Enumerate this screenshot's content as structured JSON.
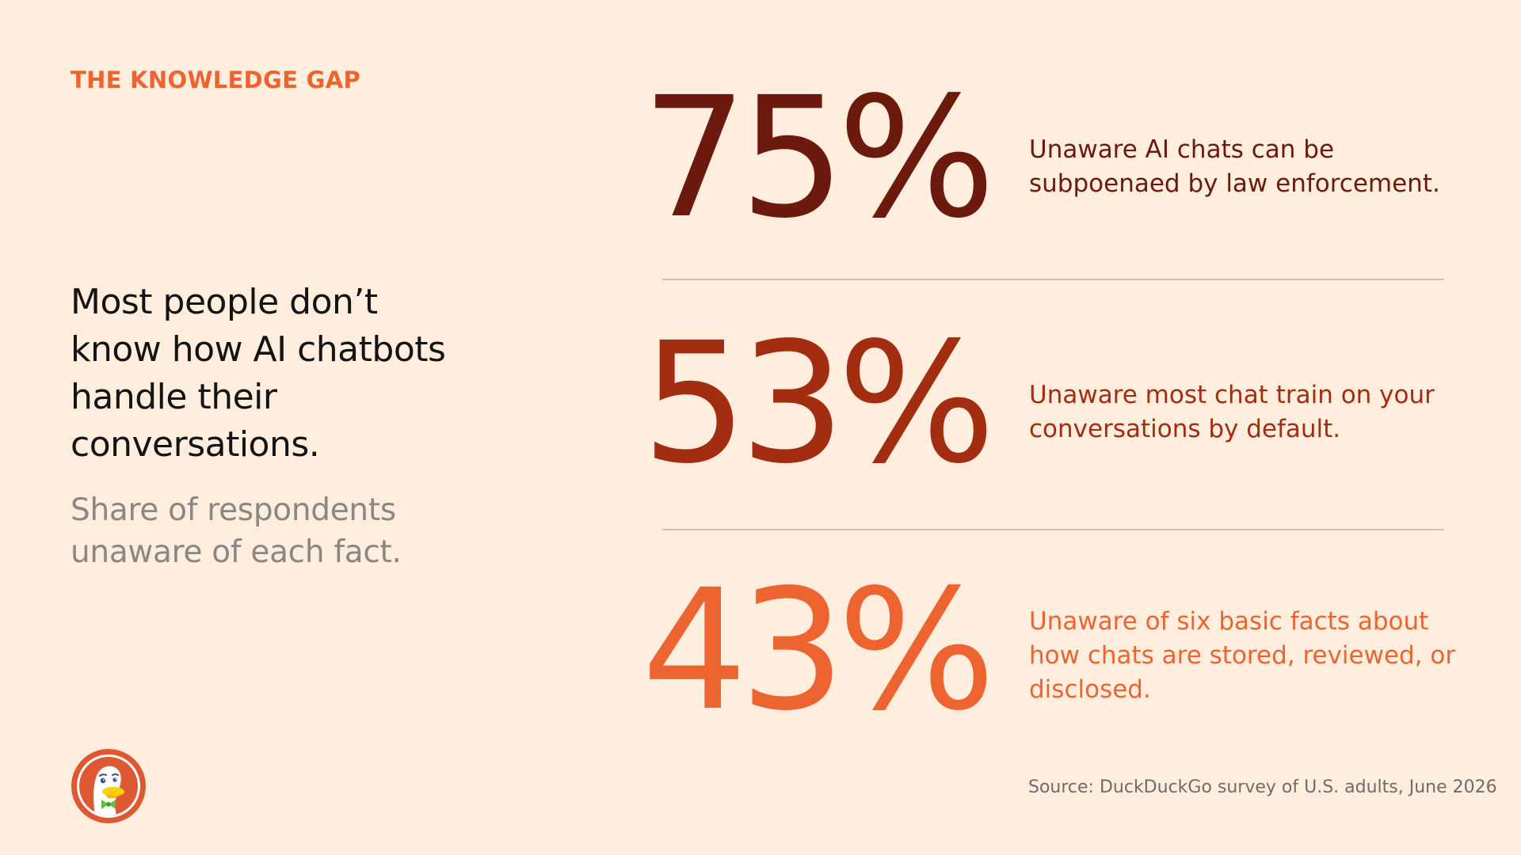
{
  "eyebrow": "THE KNOWLEDGE GAP",
  "headline": "Most people don’t know how AI chatbots handle their conversations.",
  "subhead": "Share of respondents unaware of each fact.",
  "stats": [
    {
      "value": "75%",
      "description": "Unaware AI chats can be subpoenaed by law enforcement.",
      "color": "#6b1a0d"
    },
    {
      "value": "53%",
      "description": "Unaware most chat train on your conversations by default.",
      "color": "#a32d10"
    },
    {
      "value": "43%",
      "description": "Unaware of six basic facts about how chats are stored, reviewed, or disclosed.",
      "color": "#ee6431"
    }
  ],
  "source": "Source: DuckDuckGo survey of U.S. adults, June 2026",
  "logo_icon": "duckduckgo-logo-icon",
  "colors": {
    "background": "#ffeddd",
    "accent": "#ee6431",
    "divider": "#cdc2b6",
    "headline": "#141414",
    "subhead": "#8a8784"
  }
}
